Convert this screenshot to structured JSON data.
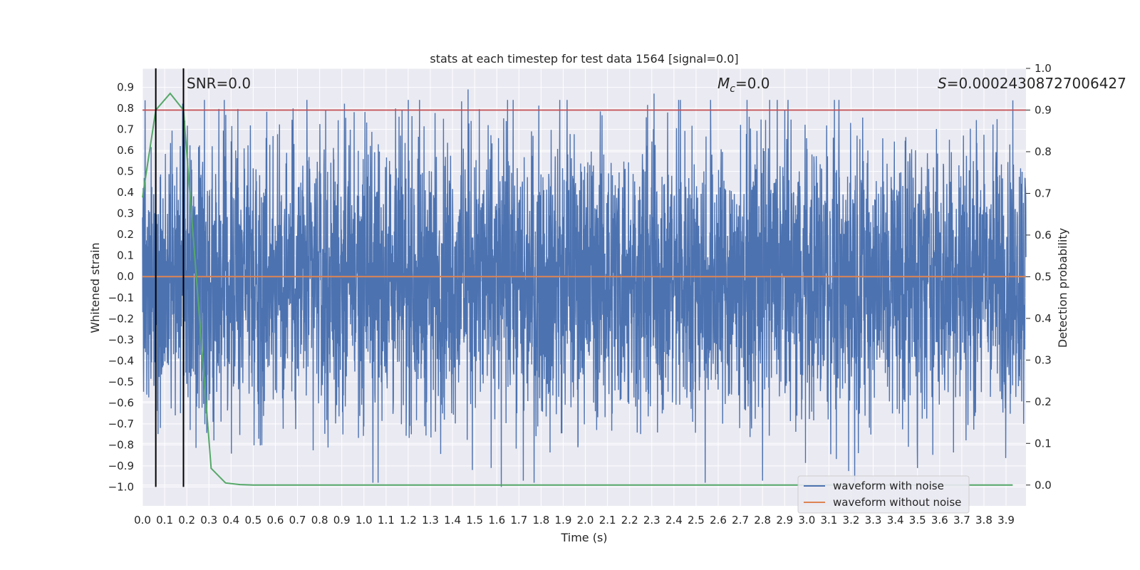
{
  "chart_data": {
    "type": "line",
    "title": "stats at each timestep for test data 1564 [signal=0.0]",
    "xlabel": "Time (s)",
    "ylabel": "Whitened strain",
    "y2label": "Detection probability",
    "xlim": [
      0.0,
      3.99
    ],
    "ylim": [
      -1.09,
      0.99
    ],
    "y2lim": [
      -0.05,
      1.0
    ],
    "xticks": [
      "0.0",
      "0.1",
      "0.2",
      "0.3",
      "0.4",
      "0.5",
      "0.6",
      "0.7",
      "0.8",
      "0.9",
      "1.0",
      "1.1",
      "1.2",
      "1.3",
      "1.4",
      "1.5",
      "1.6",
      "1.7",
      "1.8",
      "1.9",
      "2.0",
      "2.1",
      "2.2",
      "2.3",
      "2.4",
      "2.5",
      "2.6",
      "2.7",
      "2.8",
      "2.9",
      "3.0",
      "3.1",
      "3.2",
      "3.3",
      "3.4",
      "3.5",
      "3.6",
      "3.7",
      "3.8",
      "3.9"
    ],
    "yticks": [
      "0.9",
      "0.8",
      "0.7",
      "0.6",
      "0.5",
      "0.4",
      "0.3",
      "0.2",
      "0.1",
      "0.0",
      "-0.1",
      "-0.2",
      "-0.3",
      "-0.4",
      "-0.5",
      "-0.6",
      "-0.7",
      "-0.8",
      "-0.9",
      "-1.0"
    ],
    "y2ticks": [
      "0.0",
      "0.1",
      "0.2",
      "0.3",
      "0.4",
      "0.5",
      "0.6",
      "0.7",
      "0.8",
      "0.9",
      "1.0"
    ],
    "grid": true,
    "legend_position": "lower-right",
    "annotations": [
      {
        "id": "snr",
        "text": "SNR=0.0"
      },
      {
        "id": "mc",
        "text": "M_c=0.0",
        "base": "M",
        "sub": "c",
        "rest": "=0.0"
      },
      {
        "id": "s",
        "text": "S=0.00024308727006427",
        "base": "S",
        "rest": "=0.00024308727006427"
      }
    ],
    "vertical_lines_x": [
      0.06,
      0.185
    ],
    "threshold_y2": 0.9,
    "series": [
      {
        "name": "waveform with noise",
        "axis": "left",
        "color": "#4c72b0",
        "description": "noise samples, roughly uniform amplitude",
        "noise_peaks": [
          {
            "x": 1.47,
            "y": 0.89
          },
          {
            "x": 2.31,
            "y": 0.87
          },
          {
            "x": 1.62,
            "y": -1.0
          },
          {
            "x": 1.72,
            "y": -0.97
          },
          {
            "x": 2.8,
            "y": -0.97
          },
          {
            "x": 3.5,
            "y": -0.91
          }
        ]
      },
      {
        "name": "waveform without noise",
        "axis": "left",
        "color": "#dd8452",
        "values": [
          [
            0.0,
            0.0
          ],
          [
            3.99,
            0.0
          ]
        ]
      },
      {
        "name": "",
        "axis": "right",
        "color": "#55a868",
        "points": [
          [
            0.0,
            0.69
          ],
          [
            0.06,
            0.9
          ],
          [
            0.125,
            0.94
          ],
          [
            0.185,
            0.9
          ],
          [
            0.31,
            0.04
          ],
          [
            0.375,
            0.005
          ],
          [
            0.44,
            0.001
          ],
          [
            0.5,
            0.0
          ],
          [
            3.93,
            0.0
          ]
        ]
      }
    ],
    "threshold_color": "#c44e52",
    "vline_color": "#000000"
  }
}
